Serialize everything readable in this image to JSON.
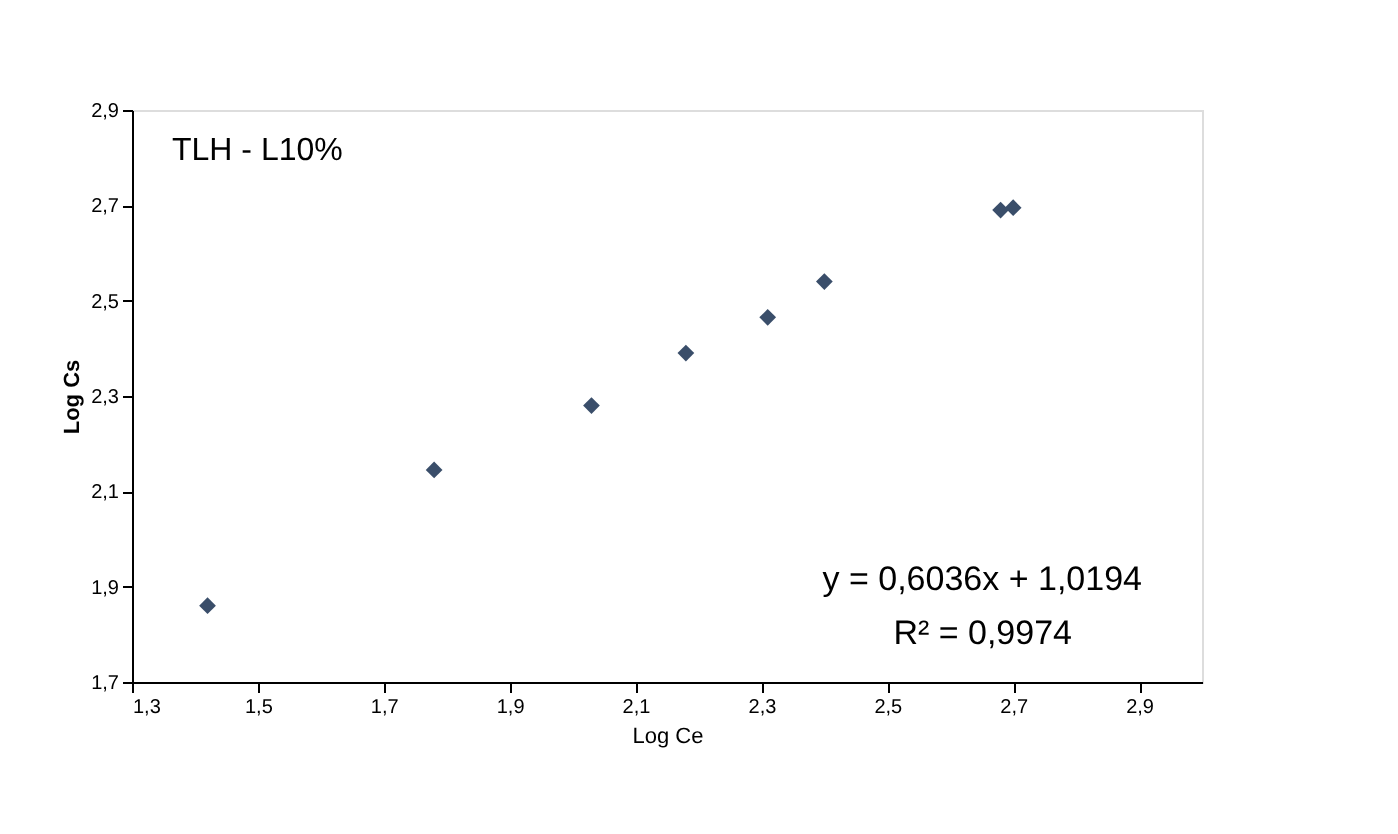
{
  "chart_data": {
    "type": "scatter",
    "xlabel": "Log Ce",
    "ylabel": "Log Cs",
    "x": [
      1.42,
      1.78,
      2.03,
      2.18,
      2.31,
      2.4,
      2.68,
      2.7
    ],
    "series": [
      {
        "color": "#3a4e6a",
        "values": [
          1.86,
          2.145,
          2.28,
          2.39,
          2.465,
          2.54,
          2.69,
          2.695
        ]
      }
    ],
    "marker": "diamond",
    "grid": false,
    "xlim": [
      1.3,
      3.0
    ],
    "xticks": [
      {
        "value": 1.3,
        "label": "1,3"
      },
      {
        "value": 1.5,
        "label": "1,5"
      },
      {
        "value": 1.7,
        "label": "1,7"
      },
      {
        "value": 1.9,
        "label": "1,9"
      },
      {
        "value": 2.1,
        "label": "2,1"
      },
      {
        "value": 2.3,
        "label": "2,3"
      },
      {
        "value": 2.5,
        "label": "2,5"
      },
      {
        "value": 2.7,
        "label": "2,7"
      },
      {
        "value": 2.9,
        "label": "2,9"
      }
    ],
    "ylim": [
      1.7,
      2.9
    ],
    "yticks": [
      {
        "value": 1.7,
        "label": "1,7"
      },
      {
        "value": 1.9,
        "label": "1,9"
      },
      {
        "value": 2.1,
        "label": "2,1"
      },
      {
        "value": 2.3,
        "label": "2,3"
      },
      {
        "value": 2.5,
        "label": "2,5"
      },
      {
        "value": 2.7,
        "label": "2,7"
      },
      {
        "value": 2.9,
        "label": "2,9"
      }
    ],
    "annotations": [
      "TLH - L10%",
      "y = 0,6036x + 1,0194",
      "R² = 0,9974"
    ]
  }
}
